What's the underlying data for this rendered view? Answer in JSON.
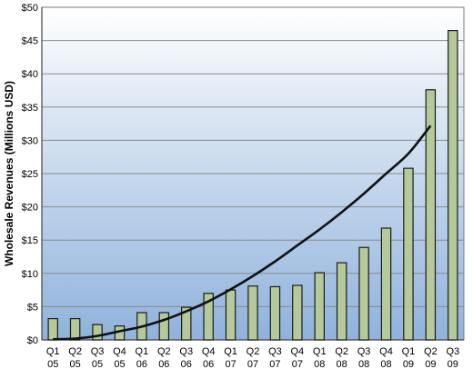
{
  "chart_data": {
    "type": "bar",
    "title": "",
    "xlabel": "",
    "ylabel": "Wholesale Revenues (Millions USD)",
    "ylim": [
      0,
      50
    ],
    "yticks": [
      "$0",
      "$5",
      "$10",
      "$15",
      "$20",
      "$25",
      "$30",
      "$35",
      "$40",
      "$45",
      "$50"
    ],
    "grid": true,
    "categories": [
      [
        "Q1",
        "05"
      ],
      [
        "Q2",
        "05"
      ],
      [
        "Q3",
        "05"
      ],
      [
        "Q4",
        "05"
      ],
      [
        "Q1",
        "06"
      ],
      [
        "Q2",
        "06"
      ],
      [
        "Q3",
        "06"
      ],
      [
        "Q4",
        "06"
      ],
      [
        "Q1",
        "07"
      ],
      [
        "Q2",
        "07"
      ],
      [
        "Q3",
        "07"
      ],
      [
        "Q4",
        "07"
      ],
      [
        "Q1",
        "08"
      ],
      [
        "Q2",
        "08"
      ],
      [
        "Q3",
        "08"
      ],
      [
        "Q4",
        "08"
      ],
      [
        "Q1",
        "09"
      ],
      [
        "Q2",
        "09"
      ],
      [
        "Q3",
        "09"
      ]
    ],
    "values": [
      3.2,
      3.2,
      2.3,
      2.1,
      4.1,
      4.1,
      4.9,
      7.0,
      7.5,
      8.1,
      8.0,
      8.2,
      10.1,
      11.6,
      13.9,
      16.8,
      25.8,
      37.6,
      46.5
    ],
    "trendline": {
      "type": "polynomial",
      "points": [
        [
          0,
          0.1
        ],
        [
          1,
          0.2
        ],
        [
          2,
          0.6
        ],
        [
          3,
          1.3
        ],
        [
          4,
          2.0
        ],
        [
          5,
          3.0
        ],
        [
          6,
          4.3
        ],
        [
          7,
          5.8
        ],
        [
          8,
          7.6
        ],
        [
          9,
          9.6
        ],
        [
          10,
          11.8
        ],
        [
          11,
          14.2
        ],
        [
          12,
          16.6
        ],
        [
          13,
          19.2
        ],
        [
          14,
          22.0
        ],
        [
          15,
          25.0
        ],
        [
          16,
          28.0
        ],
        [
          17,
          32.2
        ]
      ]
    },
    "colors": {
      "bar_fill": "#b5c99a",
      "bar_stroke": "#1a1a1a",
      "trend": "#111111",
      "grid": "#8a8a8a",
      "bg_top": "#ffffff",
      "bg_bottom": "#8fb2dc"
    }
  }
}
